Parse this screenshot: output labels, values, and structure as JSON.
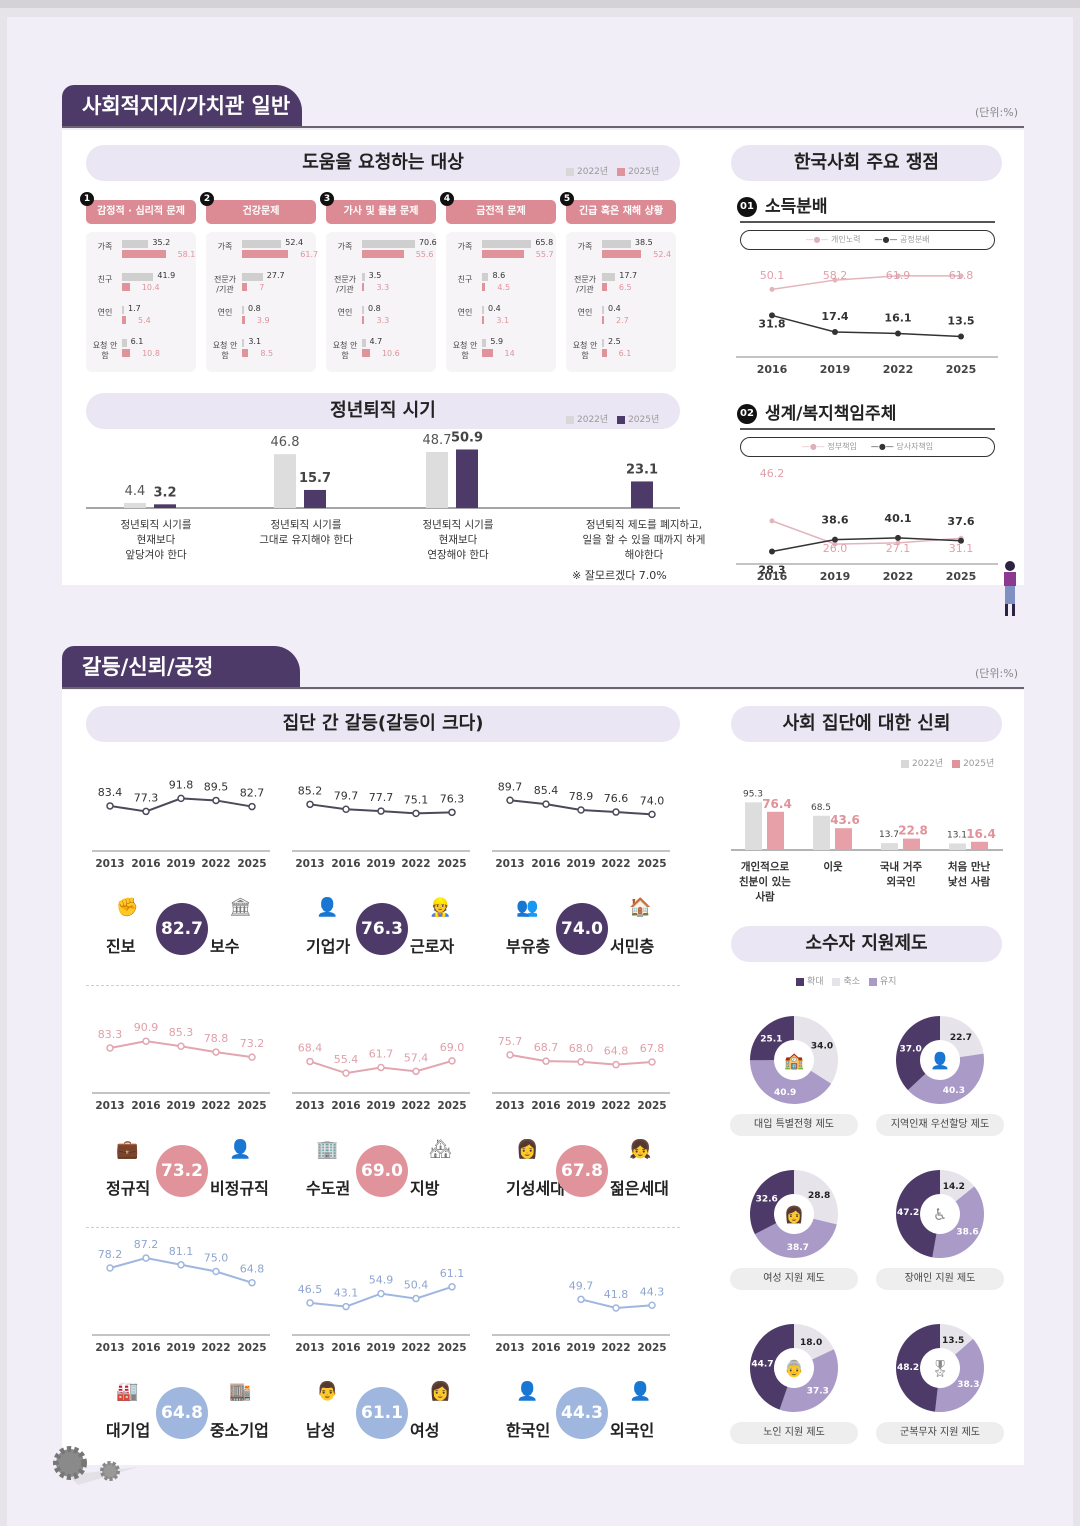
{
  "unit_label": "(단위:%)",
  "section1": {
    "title": "사회적지지/가치관 일반",
    "help": {
      "title": "도움을 요청하는 대상",
      "legend": [
        "2022년",
        "2025년"
      ],
      "columns": [
        {
          "num": "1",
          "label": "감정적 · 심리적 문제",
          "rows": [
            {
              "label": "가족",
              "v2022": 35.2,
              "v2025": 58.1
            },
            {
              "label": "친구",
              "v2022": 41.9,
              "v2025": 10.4
            },
            {
              "label": "연인",
              "v2022": 1.7,
              "v2025": 5.4
            },
            {
              "label": "요청 안함",
              "v2022": 6.1,
              "v2025": 10.8
            }
          ]
        },
        {
          "num": "2",
          "label": "건강문제",
          "rows": [
            {
              "label": "가족",
              "v2022": 52.4,
              "v2025": 61.7
            },
            {
              "label": "전문가 /기관",
              "v2022": 27.7,
              "v2025": 7.0
            },
            {
              "label": "연인",
              "v2022": 0.8,
              "v2025": 3.9
            },
            {
              "label": "요청 안함",
              "v2022": 3.1,
              "v2025": 8.5
            }
          ]
        },
        {
          "num": "3",
          "label": "가사 및 돌봄 문제",
          "rows": [
            {
              "label": "가족",
              "v2022": 70.6,
              "v2025": 55.6
            },
            {
              "label": "전문가 /기관",
              "v2022": 3.5,
              "v2025": 3.3
            },
            {
              "label": "연인",
              "v2022": 0.8,
              "v2025": 3.3
            },
            {
              "label": "요청 안함",
              "v2022": 4.7,
              "v2025": 10.6
            }
          ]
        },
        {
          "num": "4",
          "label": "금전적 문제",
          "rows": [
            {
              "label": "가족",
              "v2022": 65.8,
              "v2025": 55.7
            },
            {
              "label": "친구",
              "v2022": 8.6,
              "v2025": 4.5
            },
            {
              "label": "연인",
              "v2022": 0.4,
              "v2025": 3.1
            },
            {
              "label": "요청 안함",
              "v2022": 5.9,
              "v2025": 14.0
            }
          ]
        },
        {
          "num": "5",
          "label": "긴급 혹은 재해 상황",
          "rows": [
            {
              "label": "가족",
              "v2022": 38.5,
              "v2025": 52.4
            },
            {
              "label": "전문가 /기관",
              "v2022": 17.7,
              "v2025": 6.5
            },
            {
              "label": "연인",
              "v2022": 0.4,
              "v2025": 2.7
            },
            {
              "label": "요청 안함",
              "v2022": 2.5,
              "v2025": 6.1
            }
          ]
        }
      ]
    },
    "retire": {
      "title": "정년퇴직 시기",
      "legend": [
        "2022년",
        "2025년"
      ],
      "items": [
        {
          "label": "정년퇴직 시기를 현재보다 앞당겨야 한다",
          "lines": [
            "정년퇴직 시기를",
            "현재보다",
            "앞당겨야 한다"
          ],
          "v2022": "4.4",
          "v2025": "3.2"
        },
        {
          "label": "정년퇴직 시기를 그대로 유지해야 한다",
          "lines": [
            "정년퇴직 시기를",
            "그대로 유지해야 한다"
          ],
          "v2022": "46.8",
          "v2025": "15.7"
        },
        {
          "label": "정년퇴직 시기를 현재보다 연장해야 한다",
          "lines": [
            "정년퇴직 시기를",
            "현재보다",
            "연장해야 한다"
          ],
          "v2022": "48.7",
          "v2025": "50.9"
        },
        {
          "label": "정년퇴직 제도를 폐지하고, 일을 할 수 있을 때까지 하게 해야한다",
          "lines": [
            "정년퇴직 제도를 폐지하고,",
            "일을 할 수 있을 때까지 하게",
            "해야한다"
          ],
          "v2022": null,
          "v2025": "23.1"
        }
      ],
      "note": "※ 잘모르겠다 7.0%"
    },
    "issues": {
      "title": "한국사회 주요 쟁점",
      "topics": [
        {
          "num": "01",
          "title": "소득분배",
          "legend": [
            "개인노력",
            "공정분배"
          ],
          "years": [
            "2016",
            "2019",
            "2022",
            "2025"
          ],
          "series_a": [
            "50.1",
            "58.2",
            "61.9",
            "61.8"
          ],
          "series_b": [
            "31.8",
            "17.4",
            "16.1",
            "13.5"
          ]
        },
        {
          "num": "02",
          "title": "생계/복지책임주체",
          "legend": [
            "정부책임",
            "당사자책임"
          ],
          "years": [
            "2016",
            "2019",
            "2022",
            "2025"
          ],
          "series_a": [
            "46.2",
            "26.0",
            "27.1",
            "31.1"
          ],
          "series_b": [
            "28.3",
            "38.6",
            "40.1",
            "37.6"
          ]
        }
      ]
    }
  },
  "section2": {
    "title": "갈등/신뢰/공정",
    "conflict": {
      "title": "집단 간 갈등(갈등이 크다)",
      "years": [
        "2013",
        "2016",
        "2019",
        "2022",
        "2025"
      ],
      "groups": [
        {
          "a": "진보",
          "b": "보수",
          "value": "82.7",
          "series": [
            "83.4",
            "77.3",
            "91.8",
            "89.5",
            "82.7"
          ],
          "tone": "dark"
        },
        {
          "a": "기업가",
          "b": "근로자",
          "value": "76.3",
          "series": [
            "85.2",
            "79.7",
            "77.7",
            "75.1",
            "76.3"
          ],
          "tone": "dark"
        },
        {
          "a": "부유층",
          "b": "서민층",
          "value": "74.0",
          "series": [
            "89.7",
            "85.4",
            "78.9",
            "76.6",
            "74.0"
          ],
          "tone": "dark"
        },
        {
          "a": "정규직",
          "b": "비정규직",
          "value": "73.2",
          "series": [
            "83.3",
            "90.9",
            "85.3",
            "78.8",
            "73.2"
          ],
          "tone": "pink"
        },
        {
          "a": "수도권",
          "b": "지방",
          "value": "69.0",
          "series": [
            "68.4",
            "55.4",
            "61.7",
            "57.4",
            "69.0"
          ],
          "tone": "pink"
        },
        {
          "a": "기성세대",
          "b": "젊은세대",
          "value": "67.8",
          "series": [
            "75.7",
            "68.7",
            "68.0",
            "64.8",
            "67.8"
          ],
          "tone": "pink"
        },
        {
          "a": "대기업",
          "b": "중소기업",
          "value": "64.8",
          "series": [
            "78.2",
            "87.2",
            "81.1",
            "75.0",
            "64.8"
          ],
          "tone": "blue"
        },
        {
          "a": "남성",
          "b": "여성",
          "value": "61.1",
          "series": [
            "46.5",
            "43.1",
            "54.9",
            "50.4",
            "61.1"
          ],
          "tone": "blue"
        },
        {
          "a": "한국인",
          "b": "외국인",
          "value": "44.3",
          "series": [
            null,
            null,
            "49.7",
            "41.8",
            "44.3"
          ],
          "tone": "blue"
        }
      ]
    },
    "trust": {
      "title": "사회 집단에 대한 신뢰",
      "legend": [
        "2022년",
        "2025년"
      ],
      "items": [
        {
          "label": "개인적으로 친분이 있는 사람",
          "lines": [
            "개인적으로",
            "친분이 있는",
            "사람"
          ],
          "v2022": "95.3",
          "v2025": "76.4"
        },
        {
          "label": "이웃",
          "lines": [
            "이웃"
          ],
          "v2022": "68.5",
          "v2025": "43.6"
        },
        {
          "label": "국내 거주 외국인",
          "lines": [
            "국내 거주",
            "외국인"
          ],
          "v2022": "13.7",
          "v2025": "22.8"
        },
        {
          "label": "처음 만난 낯선 사람",
          "lines": [
            "처음 만난",
            "낯선 사람"
          ],
          "v2022": "13.1",
          "v2025": "16.4"
        }
      ]
    },
    "minority": {
      "title": "소수자 지원제도",
      "legend": [
        "확대",
        "축소",
        "유지"
      ],
      "items": [
        {
          "label": "대입 특별전형 제도",
          "expand": "25.1",
          "reduce": "34.0",
          "keep": "40.9"
        },
        {
          "label": "지역인재 우선할당 제도",
          "expand": "37.0",
          "reduce": "22.7",
          "keep": "40.3"
        },
        {
          "label": "여성 지원 제도",
          "expand": "32.6",
          "reduce": "28.8",
          "keep": "38.7"
        },
        {
          "label": "장애인 지원 제도",
          "expand": "47.2",
          "reduce": "14.2",
          "keep": "38.6"
        },
        {
          "label": "노인 지원 제도",
          "expand": "44.7",
          "reduce": "18.0",
          "keep": "37.3"
        },
        {
          "label": "군복무자 지원 제도",
          "expand": "48.2",
          "reduce": "13.5",
          "keep": "38.3"
        }
      ]
    }
  },
  "colors": {
    "dark": "#4e3a68",
    "pink": "#e0939b",
    "blue": "#9fb6df",
    "grey": "#d8d8d8",
    "lavender": "#ebe6f3"
  },
  "chart_data": [
    {
      "type": "bar",
      "title": "도움을 요청하는 대상 - 감정적·심리적 문제",
      "categories": [
        "가족",
        "친구",
        "연인",
        "요청 안함"
      ],
      "series": [
        {
          "name": "2022년",
          "values": [
            35.2,
            41.9,
            1.7,
            6.1
          ]
        },
        {
          "name": "2025년",
          "values": [
            58.1,
            10.4,
            5.4,
            10.8
          ]
        }
      ]
    },
    {
      "type": "bar",
      "title": "도움을 요청하는 대상 - 건강문제",
      "categories": [
        "가족",
        "전문가/기관",
        "연인",
        "요청 안함"
      ],
      "series": [
        {
          "name": "2022년",
          "values": [
            52.4,
            27.7,
            0.8,
            3.1
          ]
        },
        {
          "name": "2025년",
          "values": [
            61.7,
            7.0,
            3.9,
            8.5
          ]
        }
      ]
    },
    {
      "type": "bar",
      "title": "도움을 요청하는 대상 - 가사 및 돌봄 문제",
      "categories": [
        "가족",
        "전문가/기관",
        "연인",
        "요청 안함"
      ],
      "series": [
        {
          "name": "2022년",
          "values": [
            70.6,
            3.5,
            0.8,
            4.7
          ]
        },
        {
          "name": "2025년",
          "values": [
            55.6,
            3.3,
            3.3,
            10.6
          ]
        }
      ]
    },
    {
      "type": "bar",
      "title": "도움을 요청하는 대상 - 금전적 문제",
      "categories": [
        "가족",
        "친구",
        "연인",
        "요청 안함"
      ],
      "series": [
        {
          "name": "2022년",
          "values": [
            65.8,
            8.6,
            0.4,
            5.9
          ]
        },
        {
          "name": "2025년",
          "values": [
            55.7,
            4.5,
            3.1,
            14.0
          ]
        }
      ]
    },
    {
      "type": "bar",
      "title": "도움을 요청하는 대상 - 긴급 혹은 재해 상황",
      "categories": [
        "가족",
        "전문가/기관",
        "연인",
        "요청 안함"
      ],
      "series": [
        {
          "name": "2022년",
          "values": [
            38.5,
            17.7,
            0.4,
            2.5
          ]
        },
        {
          "name": "2025년",
          "values": [
            52.4,
            6.5,
            2.7,
            6.1
          ]
        }
      ]
    },
    {
      "type": "bar",
      "title": "정년퇴직 시기",
      "categories": [
        "앞당겨야",
        "유지해야",
        "연장해야",
        "폐지"
      ],
      "series": [
        {
          "name": "2022년",
          "values": [
            4.4,
            46.8,
            48.7,
            null
          ]
        },
        {
          "name": "2025년",
          "values": [
            3.2,
            15.7,
            50.9,
            23.1
          ]
        }
      ],
      "annotation": "※ 잘모르겠다 7.0%"
    },
    {
      "type": "line",
      "title": "소득분배",
      "x": [
        2016,
        2019,
        2022,
        2025
      ],
      "series": [
        {
          "name": "개인노력",
          "values": [
            50.1,
            58.2,
            61.9,
            61.8
          ]
        },
        {
          "name": "공정분배",
          "values": [
            31.8,
            17.4,
            16.1,
            13.5
          ]
        }
      ]
    },
    {
      "type": "line",
      "title": "생계/복지책임주체",
      "x": [
        2016,
        2019,
        2022,
        2025
      ],
      "series": [
        {
          "name": "정부책임",
          "values": [
            46.2,
            26.0,
            27.1,
            31.1
          ]
        },
        {
          "name": "당사자책임",
          "values": [
            28.3,
            38.6,
            40.1,
            37.6
          ]
        }
      ]
    },
    {
      "type": "line",
      "title": "집단 간 갈등(갈등이 크다)",
      "x": [
        2013,
        2016,
        2019,
        2022,
        2025
      ],
      "series": [
        {
          "name": "진보-보수",
          "values": [
            83.4,
            77.3,
            91.8,
            89.5,
            82.7
          ]
        },
        {
          "name": "기업가-근로자",
          "values": [
            85.2,
            79.7,
            77.7,
            75.1,
            76.3
          ]
        },
        {
          "name": "부유층-서민층",
          "values": [
            89.7,
            85.4,
            78.9,
            76.6,
            74.0
          ]
        },
        {
          "name": "정규직-비정규직",
          "values": [
            83.3,
            90.9,
            85.3,
            78.8,
            73.2
          ]
        },
        {
          "name": "수도권-지방",
          "values": [
            68.4,
            55.4,
            61.7,
            57.4,
            69.0
          ]
        },
        {
          "name": "기성세대-젊은세대",
          "values": [
            75.7,
            68.7,
            68.0,
            64.8,
            67.8
          ]
        },
        {
          "name": "대기업-중소기업",
          "values": [
            78.2,
            87.2,
            81.1,
            75.0,
            64.8
          ]
        },
        {
          "name": "남성-여성",
          "values": [
            46.5,
            43.1,
            54.9,
            50.4,
            61.1
          ]
        },
        {
          "name": "한국인-외국인",
          "values": [
            null,
            null,
            49.7,
            41.8,
            44.3
          ]
        }
      ]
    },
    {
      "type": "bar",
      "title": "사회 집단에 대한 신뢰",
      "categories": [
        "개인적으로 친분이 있는 사람",
        "이웃",
        "국내 거주 외국인",
        "처음 만난 낯선 사람"
      ],
      "series": [
        {
          "name": "2022년",
          "values": [
            95.3,
            68.5,
            13.7,
            13.1
          ]
        },
        {
          "name": "2025년",
          "values": [
            76.4,
            43.6,
            22.8,
            16.4
          ]
        }
      ]
    },
    {
      "type": "pie",
      "title": "소수자 지원제도",
      "categories": [
        "확대",
        "축소",
        "유지"
      ],
      "series": [
        {
          "name": "대입 특별전형 제도",
          "values": [
            25.1,
            34.0,
            40.9
          ]
        },
        {
          "name": "지역인재 우선할당 제도",
          "values": [
            37.0,
            22.7,
            40.3
          ]
        },
        {
          "name": "여성 지원 제도",
          "values": [
            32.6,
            28.8,
            38.7
          ]
        },
        {
          "name": "장애인 지원 제도",
          "values": [
            47.2,
            14.2,
            38.6
          ]
        },
        {
          "name": "노인 지원 제도",
          "values": [
            44.7,
            18.0,
            37.3
          ]
        },
        {
          "name": "군복무자 지원 제도",
          "values": [
            48.2,
            13.5,
            38.3
          ]
        }
      ]
    }
  ]
}
